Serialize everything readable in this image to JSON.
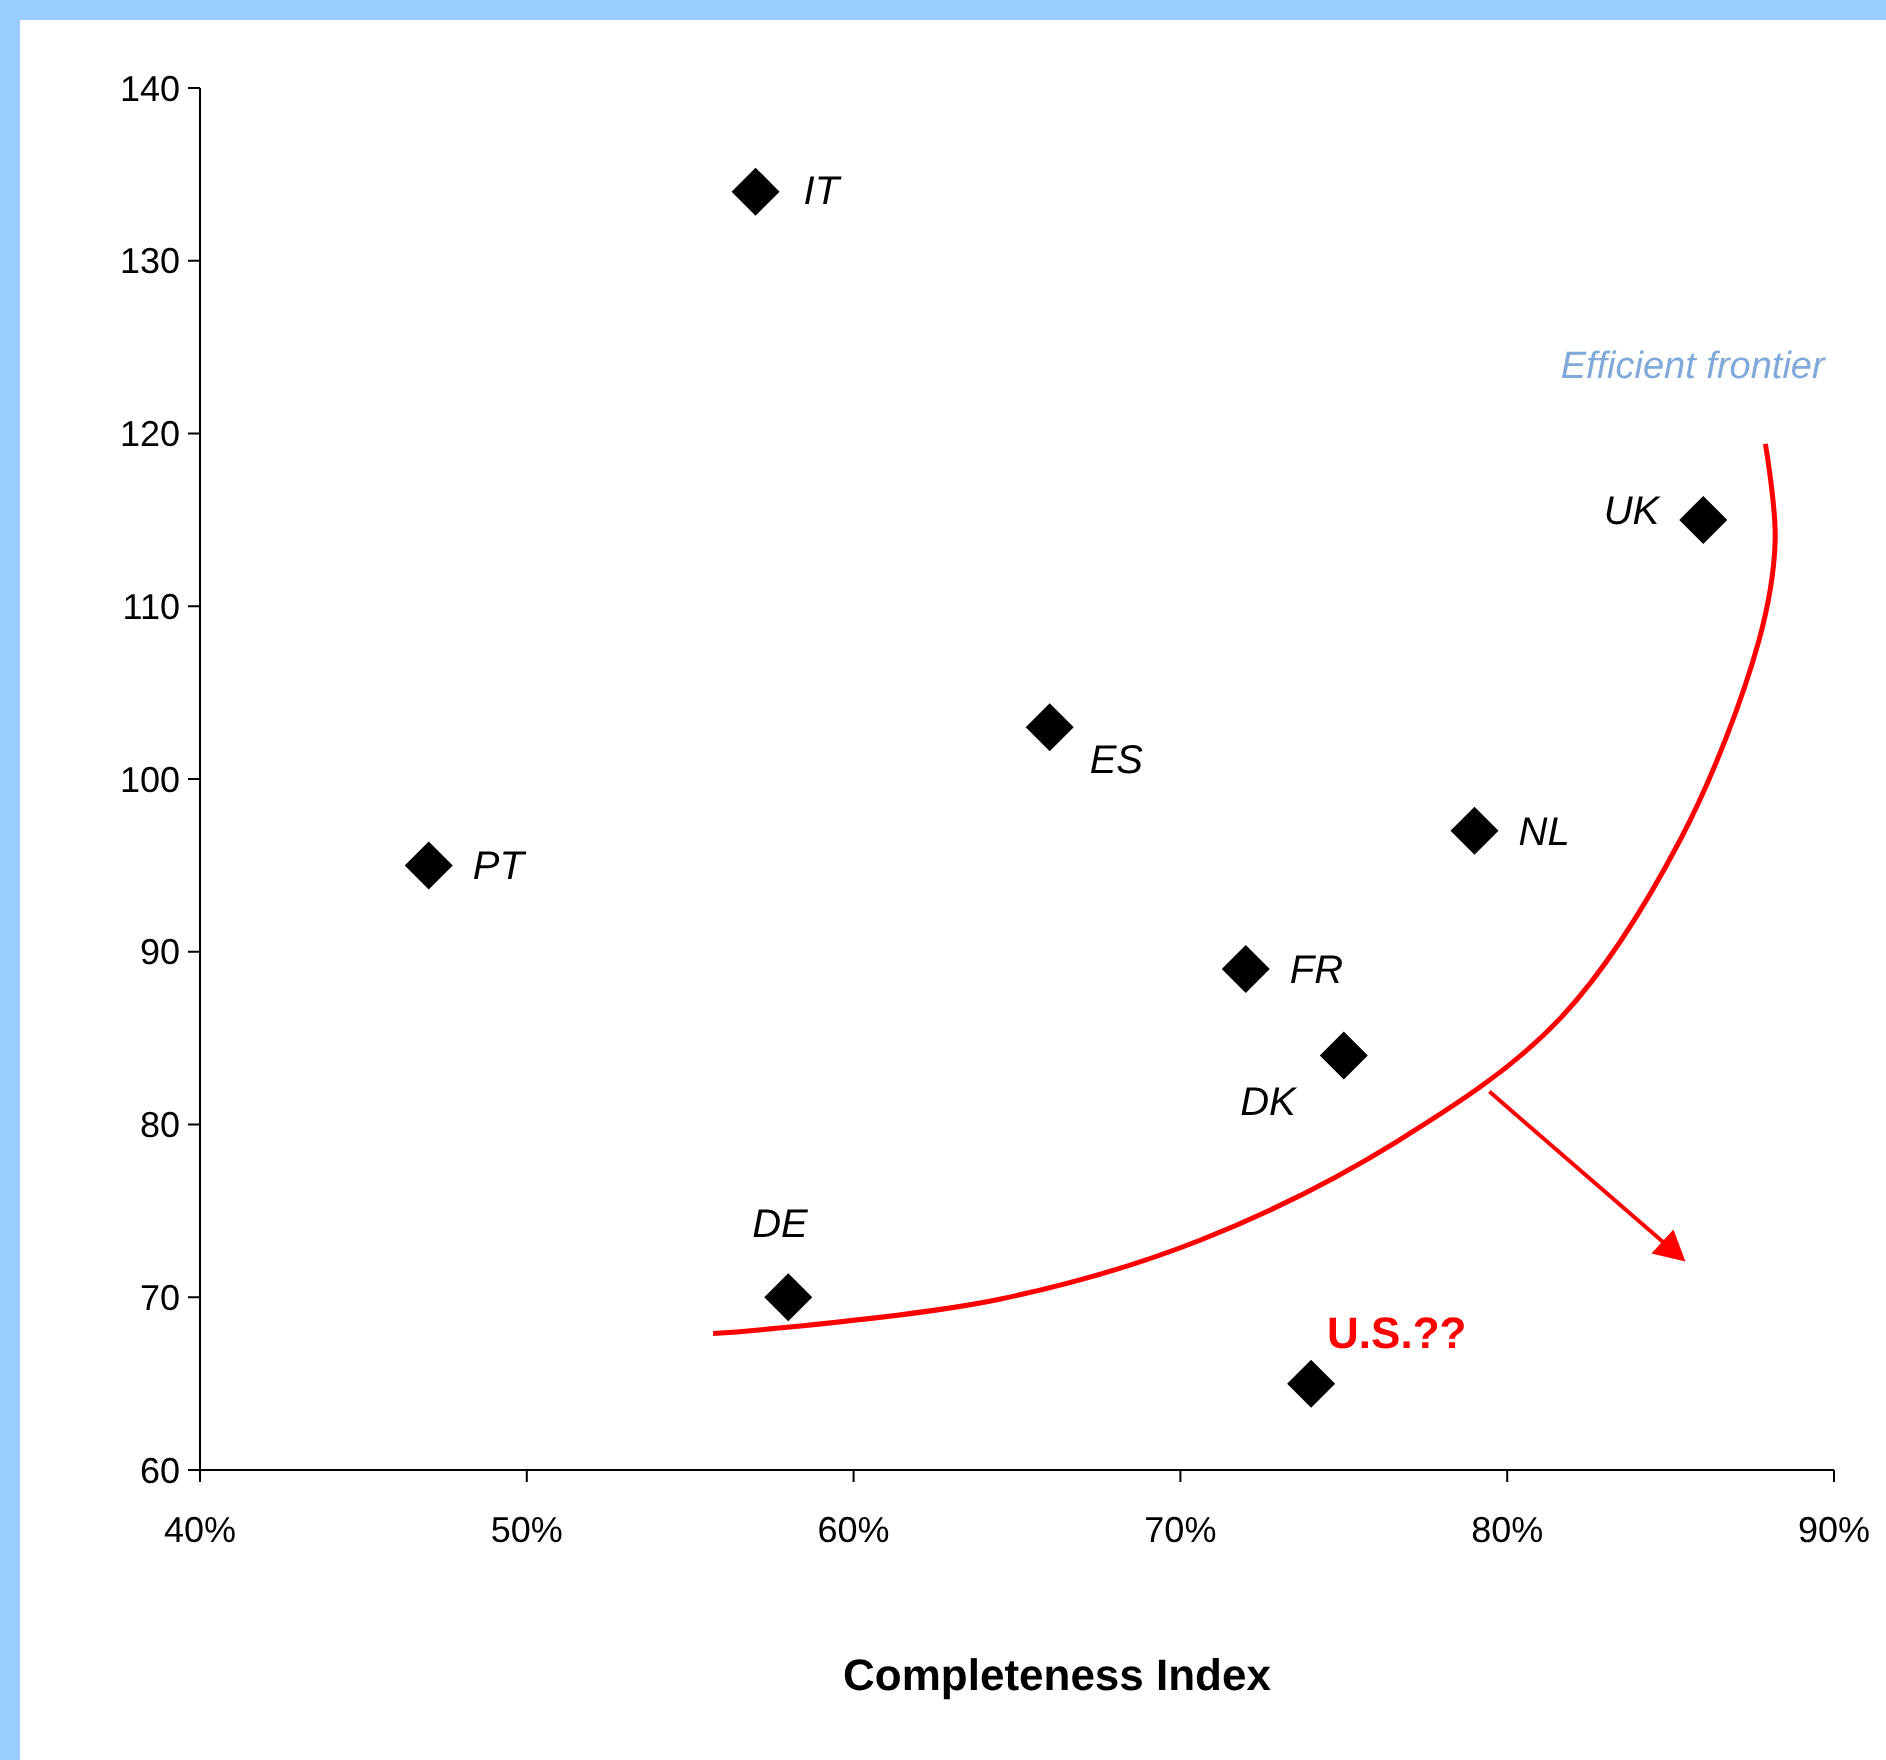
{
  "chart_data": {
    "type": "scatter",
    "xlabel": "Completeness Index",
    "xlim": [
      40,
      90
    ],
    "xticks": [
      {
        "value": 40,
        "label": "40%"
      },
      {
        "value": 50,
        "label": "50%"
      },
      {
        "value": 60,
        "label": "60%"
      },
      {
        "value": 70,
        "label": "70%"
      },
      {
        "value": 80,
        "label": "80%"
      },
      {
        "value": 90,
        "label": "90%"
      }
    ],
    "ylim": [
      60,
      140
    ],
    "yticks": [
      60,
      70,
      80,
      90,
      100,
      110,
      120,
      130,
      140
    ],
    "grid": false,
    "series": [
      {
        "color": "#000000",
        "marker": "diamond",
        "x": [
          57,
          86,
          66,
          47,
          79,
          72,
          75,
          58,
          74
        ],
        "values": [
          134,
          115,
          103,
          95,
          97,
          89,
          84,
          70,
          65
        ]
      },
      {
        "type": "line",
        "color": "#ff0000",
        "line_style": "solid",
        "x": [
          55.7,
          57.1,
          64.5,
          70.6,
          76.7,
          81.6,
          85.3,
          87.7,
          88.2,
          87.9
        ],
        "values": [
          67.9,
          68.1,
          69.9,
          73.3,
          79.1,
          86.1,
          96.5,
          108,
          113.8,
          119.4
        ]
      }
    ],
    "annotations": [
      {
        "text": "IT",
        "x": 57,
        "y": 134
      },
      {
        "text": "UK",
        "x": 86,
        "y": 115
      },
      {
        "text": "ES",
        "x": 66,
        "y": 103
      },
      {
        "text": "PT",
        "x": 47,
        "y": 95
      },
      {
        "text": "NL",
        "x": 79,
        "y": 97
      },
      {
        "text": "FR",
        "x": 72,
        "y": 89
      },
      {
        "text": "DK",
        "x": 75,
        "y": 84
      },
      {
        "text": "DE",
        "x": 58,
        "y": 70
      },
      {
        "text": "U.S.??",
        "x": 74,
        "y": 65
      },
      {
        "text": "Efficient frontier",
        "x": 88,
        "y": 119.4
      }
    ]
  }
}
